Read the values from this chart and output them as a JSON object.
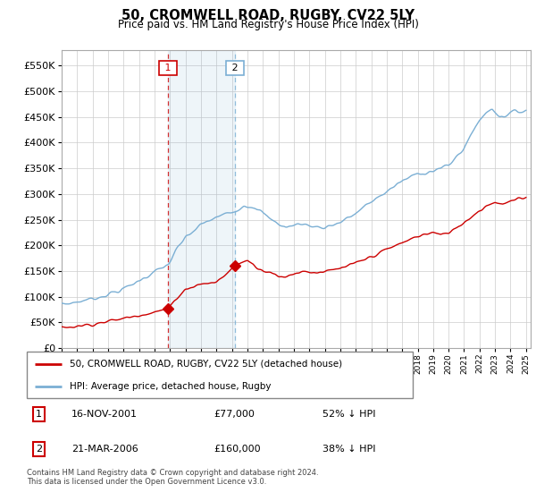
{
  "title": "50, CROMWELL ROAD, RUGBY, CV22 5LY",
  "subtitle": "Price paid vs. HM Land Registry's House Price Index (HPI)",
  "hpi_color": "#7bafd4",
  "price_color": "#cc0000",
  "vline1_color": "#cc0000",
  "vline2_color": "#7bafd4",
  "ylim": [
    0,
    580000
  ],
  "yticks": [
    0,
    50000,
    100000,
    150000,
    200000,
    250000,
    300000,
    350000,
    400000,
    450000,
    500000,
    550000
  ],
  "sale1_date": 2001.88,
  "sale1_price": 77000,
  "sale1_label": "1",
  "sale2_date": 2006.21,
  "sale2_price": 160000,
  "sale2_label": "2",
  "legend_line1": "50, CROMWELL ROAD, RUGBY, CV22 5LY (detached house)",
  "legend_line2": "HPI: Average price, detached house, Rugby",
  "table_row1": [
    "1",
    "16-NOV-2001",
    "£77,000",
    "52% ↓ HPI"
  ],
  "table_row2": [
    "2",
    "21-MAR-2006",
    "£160,000",
    "38% ↓ HPI"
  ],
  "footnote": "Contains HM Land Registry data © Crown copyright and database right 2024.\nThis data is licensed under the Open Government Licence v3.0.",
  "background_color": "#ffffff",
  "grid_color": "#cccccc"
}
